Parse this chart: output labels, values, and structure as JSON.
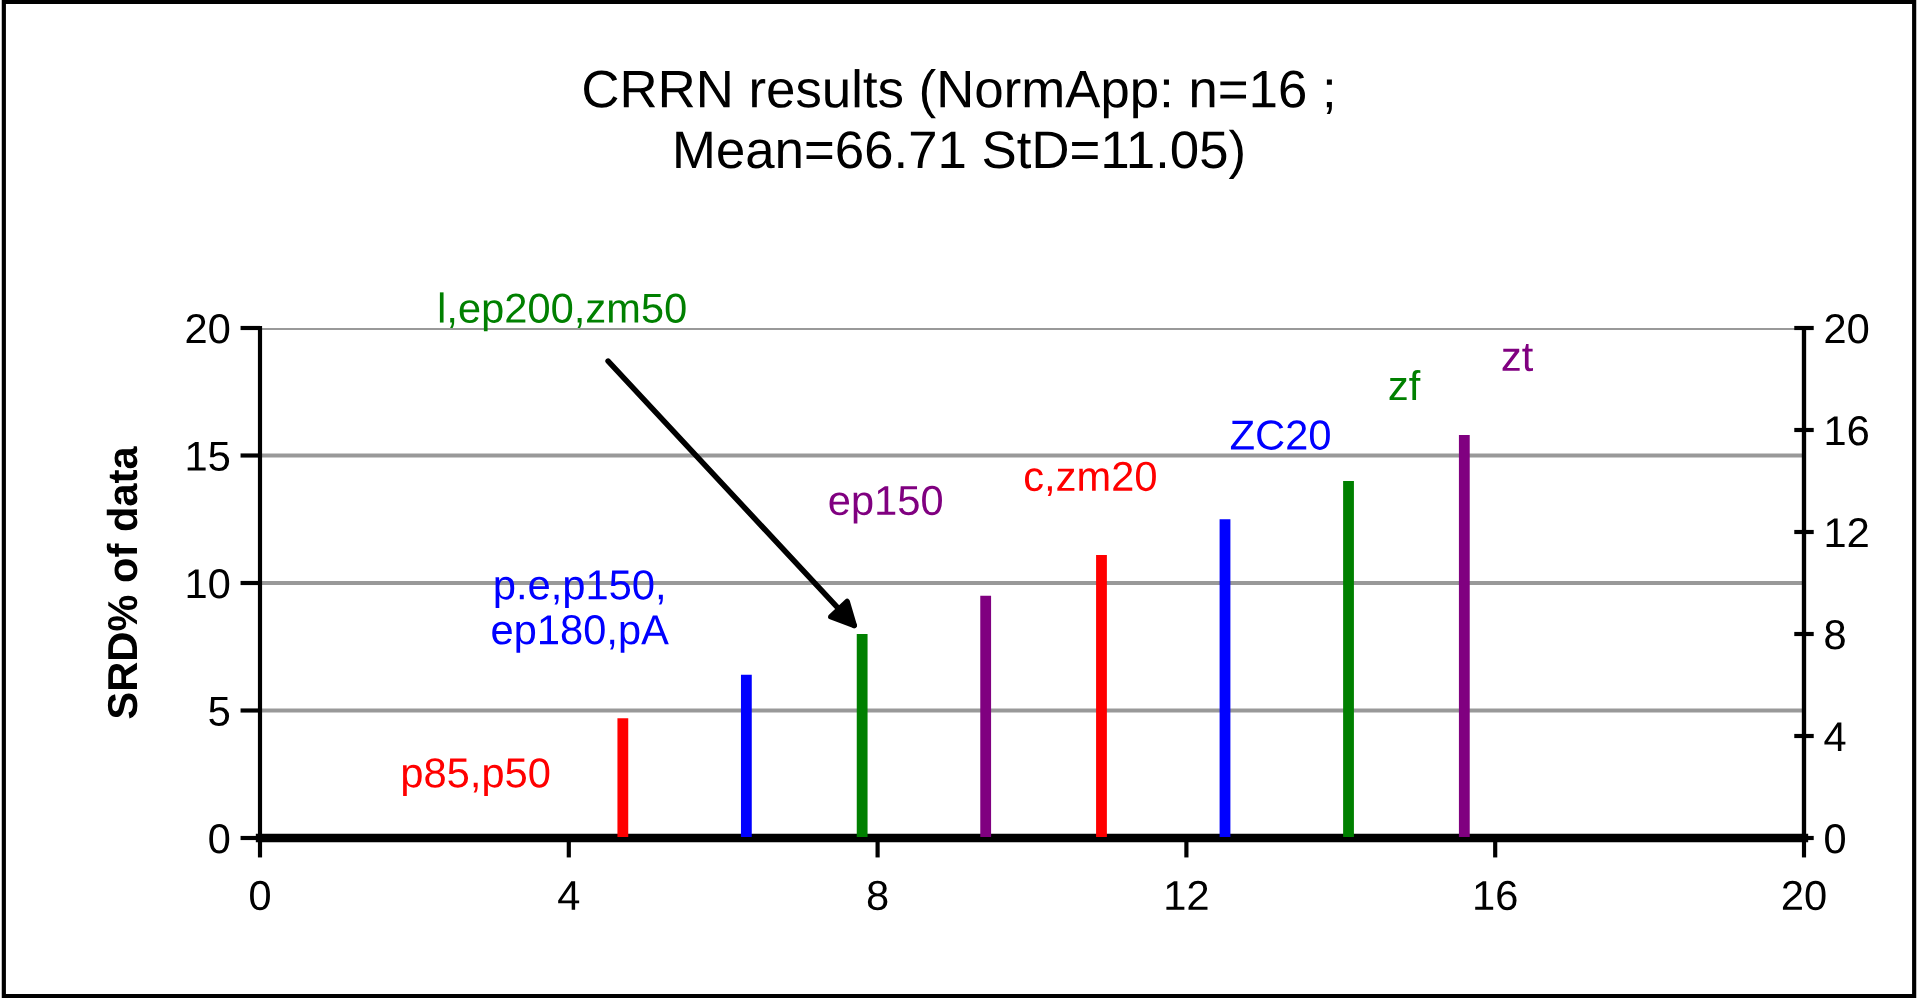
{
  "chart_data": {
    "type": "bar",
    "title": "CRRN results (NormApp: n=16 ;\nMean=66.71 StD=11.05)",
    "ylabel": "SRD% of data",
    "x": [
      4.7,
      6.3,
      7.8,
      9.4,
      10.9,
      12.5,
      14.1,
      15.6
    ],
    "values": [
      4.7,
      6.4,
      8.0,
      9.5,
      11.1,
      12.5,
      14.0,
      15.8
    ],
    "colors": [
      "#ff0000",
      "#0000ff",
      "#008000",
      "#800080",
      "#ff0000",
      "#0000ff",
      "#008000",
      "#800080"
    ],
    "annotations": [
      {
        "text": "p85,p50",
        "x": 4.7,
        "y": 4.7
      },
      {
        "text": "p.e,p150,\nep180,pA",
        "x": 6.3,
        "y": 6.4
      },
      {
        "text": "l,ep200,zm50",
        "x": 7.8,
        "y": 8.0
      },
      {
        "text": "ep150",
        "x": 9.4,
        "y": 9.5
      },
      {
        "text": "c,zm20",
        "x": 10.9,
        "y": 11.1
      },
      {
        "text": "ZC20",
        "x": 12.5,
        "y": 12.5
      },
      {
        "text": "zf",
        "x": 14.1,
        "y": 14.0
      },
      {
        "text": "zt",
        "x": 15.6,
        "y": 15.8
      }
    ],
    "xlim": [
      0,
      20
    ],
    "xticks": [
      0,
      4,
      8,
      12,
      16,
      20
    ],
    "ylim": [
      0,
      20
    ],
    "yticks": [
      0,
      5,
      10,
      15,
      20
    ],
    "y2lim": [
      0,
      20
    ],
    "y2ticks": [
      0,
      4,
      8,
      12,
      16,
      20
    ],
    "grid": "y"
  }
}
